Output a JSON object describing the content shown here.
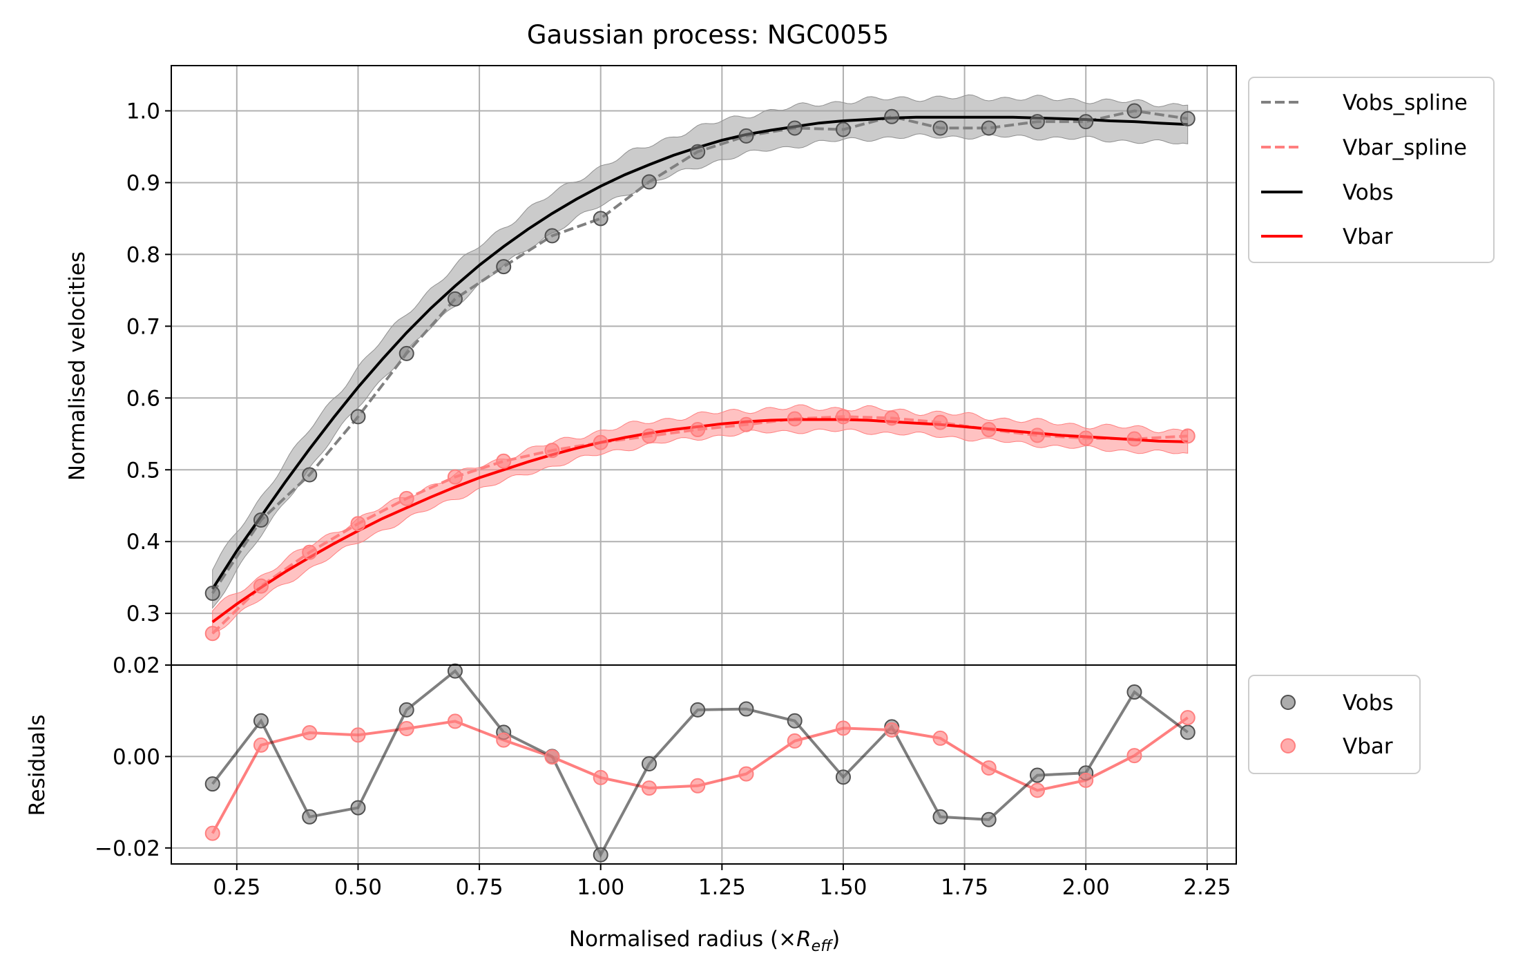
{
  "chart_data": [
    {
      "type": "line",
      "panel": "main",
      "title": "Gaussian process: NGC0055",
      "xlabel": "",
      "ylabel": "Normalised velocities",
      "xlim": [
        0.115,
        2.31
      ],
      "ylim": [
        0.228,
        1.063
      ],
      "x_ticks": [
        0.25,
        0.5,
        0.75,
        1.0,
        1.25,
        1.5,
        1.75,
        2.0,
        2.25
      ],
      "y_ticks": [
        0.3,
        0.4,
        0.5,
        0.6,
        0.7,
        0.8,
        0.9,
        1.0
      ],
      "y_tick_labels": [
        "0.3",
        "0.4",
        "0.5",
        "0.6",
        "0.7",
        "0.8",
        "0.9",
        "1.0"
      ],
      "grid": true,
      "x": [
        0.2,
        0.3,
        0.4,
        0.5,
        0.6,
        0.7,
        0.8,
        0.9,
        1.0,
        1.1,
        1.2,
        1.3,
        1.4,
        1.5,
        1.6,
        1.7,
        1.8,
        1.9,
        2.0,
        2.1,
        2.21
      ],
      "series": [
        {
          "name": "Vobs_spline",
          "style": "dashed",
          "color": "#808080",
          "marker_color": "#808080",
          "values": [
            0.328,
            0.43,
            0.493,
            0.574,
            0.662,
            0.738,
            0.783,
            0.826,
            0.85,
            0.901,
            0.943,
            0.965,
            0.976,
            0.974,
            0.992,
            0.976,
            0.976,
            0.985,
            0.985,
            1.0,
            0.989
          ]
        },
        {
          "name": "Vbar_spline",
          "style": "dashed",
          "color": "#ff7f7f",
          "marker_color": "#ff7f7f",
          "values": [
            0.272,
            0.338,
            0.385,
            0.425,
            0.46,
            0.49,
            0.512,
            0.527,
            0.538,
            0.547,
            0.556,
            0.563,
            0.571,
            0.574,
            0.572,
            0.566,
            0.556,
            0.548,
            0.544,
            0.543,
            0.547
          ]
        },
        {
          "name": "Vobs",
          "style": "solid",
          "color": "#000000",
          "band_color": "#a0a0a0",
          "x": [
            0.2,
            0.25,
            0.3,
            0.35,
            0.4,
            0.45,
            0.5,
            0.55,
            0.6,
            0.65,
            0.7,
            0.75,
            0.8,
            0.85,
            0.9,
            0.95,
            1.0,
            1.05,
            1.1,
            1.15,
            1.2,
            1.25,
            1.3,
            1.35,
            1.4,
            1.45,
            1.5,
            1.55,
            1.6,
            1.65,
            1.7,
            1.75,
            1.8,
            1.85,
            1.9,
            1.95,
            2.0,
            2.05,
            2.1,
            2.15,
            2.21
          ],
          "values": [
            0.334,
            0.387,
            0.435,
            0.483,
            0.529,
            0.573,
            0.615,
            0.654,
            0.691,
            0.725,
            0.756,
            0.785,
            0.811,
            0.835,
            0.857,
            0.877,
            0.895,
            0.911,
            0.925,
            0.938,
            0.949,
            0.959,
            0.967,
            0.973,
            0.978,
            0.983,
            0.986,
            0.988,
            0.99,
            0.991,
            0.991,
            0.991,
            0.991,
            0.991,
            0.99,
            0.989,
            0.988,
            0.986,
            0.985,
            0.983,
            0.981
          ],
          "band_halfwidth": 0.027
        },
        {
          "name": "Vbar",
          "style": "solid",
          "color": "#ff0000",
          "band_color": "#ff9090",
          "x": [
            0.2,
            0.25,
            0.3,
            0.35,
            0.4,
            0.45,
            0.5,
            0.55,
            0.6,
            0.65,
            0.7,
            0.75,
            0.8,
            0.85,
            0.9,
            0.95,
            1.0,
            1.05,
            1.1,
            1.15,
            1.2,
            1.25,
            1.3,
            1.35,
            1.4,
            1.45,
            1.5,
            1.55,
            1.6,
            1.65,
            1.7,
            1.75,
            1.8,
            1.85,
            1.9,
            1.95,
            2.0,
            2.05,
            2.1,
            2.15,
            2.21
          ],
          "values": [
            0.288,
            0.313,
            0.336,
            0.358,
            0.378,
            0.397,
            0.415,
            0.432,
            0.447,
            0.462,
            0.476,
            0.489,
            0.5,
            0.511,
            0.521,
            0.53,
            0.538,
            0.545,
            0.551,
            0.556,
            0.56,
            0.564,
            0.567,
            0.569,
            0.57,
            0.57,
            0.57,
            0.569,
            0.567,
            0.565,
            0.563,
            0.56,
            0.557,
            0.554,
            0.551,
            0.548,
            0.546,
            0.544,
            0.542,
            0.54,
            0.539
          ],
          "band_halfwidth": 0.016
        }
      ],
      "legend": {
        "placement": "outside upper right",
        "entries": [
          "Vobs_spline",
          "Vbar_spline",
          "Vobs",
          "Vbar"
        ]
      }
    },
    {
      "type": "line",
      "panel": "residuals",
      "xlabel": "Normalised radius (×R_eff)",
      "ylabel": "Residuals",
      "xlim": [
        0.115,
        2.31
      ],
      "ylim": [
        -0.0235,
        0.02
      ],
      "x_ticks": [
        0.25,
        0.5,
        0.75,
        1.0,
        1.25,
        1.5,
        1.75,
        2.0,
        2.25
      ],
      "x_tick_labels": [
        "0.25",
        "0.50",
        "0.75",
        "1.00",
        "1.25",
        "1.50",
        "1.75",
        "2.00",
        "2.25"
      ],
      "y_ticks": [
        -0.02,
        0.0,
        0.02
      ],
      "y_tick_labels": [
        "−0.02",
        "0.00",
        "0.02"
      ],
      "grid": true,
      "x": [
        0.2,
        0.3,
        0.4,
        0.5,
        0.6,
        0.7,
        0.8,
        0.9,
        1.0,
        1.1,
        1.2,
        1.3,
        1.4,
        1.5,
        1.6,
        1.7,
        1.8,
        1.9,
        2.0,
        2.1,
        2.21
      ],
      "series": [
        {
          "name": "Vobs",
          "color": "#000000",
          "values": [
            -0.006,
            0.0078,
            -0.0132,
            -0.0112,
            0.0102,
            0.0187,
            0.0053,
            0.0,
            -0.0215,
            -0.0016,
            0.0102,
            0.0104,
            0.0078,
            -0.0045,
            0.0065,
            -0.0132,
            -0.0138,
            -0.0041,
            -0.0036,
            0.0141,
            0.0053
          ]
        },
        {
          "name": "Vbar",
          "color": "#ff0000",
          "values": [
            -0.0168,
            0.0025,
            0.0052,
            0.0047,
            0.0061,
            0.0077,
            0.0036,
            -0.0001,
            -0.0046,
            -0.0069,
            -0.0064,
            -0.0038,
            0.0034,
            0.0062,
            0.0058,
            0.004,
            -0.0025,
            -0.0074,
            -0.0052,
            0.0002,
            0.0085
          ]
        }
      ],
      "legend": {
        "placement": "outside upper right",
        "entries": [
          "Vobs",
          "Vbar"
        ]
      }
    }
  ],
  "labels": {
    "title": "Gaussian process: NGC0055",
    "main_ylabel": "Normalised velocities",
    "resid_ylabel": "Residuals",
    "xlabel_main": "Normalised radius (×",
    "xlabel_R": "R",
    "xlabel_sub": "eff",
    "xlabel_close": ")"
  },
  "colors": {
    "vobs_spline": "#808080",
    "vbar_spline": "#ff7f7f",
    "vobs": "#000000",
    "vbar": "#ff0000",
    "grid": "#b0b0b0",
    "legend_border": "#cccccc"
  }
}
